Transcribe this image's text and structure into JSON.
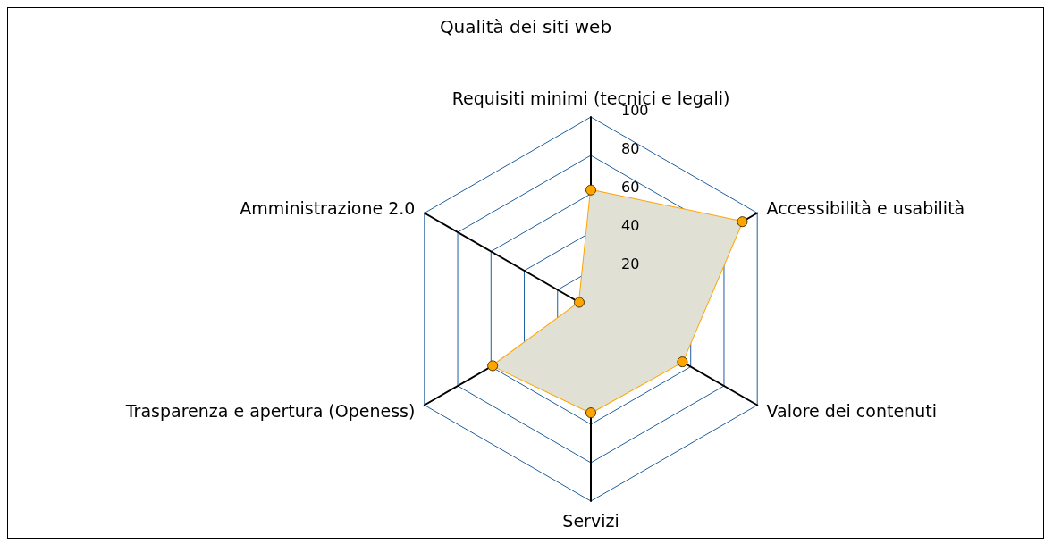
{
  "chart_data": {
    "type": "radar",
    "title": "Qualità dei siti web",
    "categories": [
      "Requisiti minimi (tecnici e legali)",
      "Accessibilità e usabilità",
      "Valore dei contenuti",
      "Servizi",
      "Trasparenza e apertura (Openess)",
      "Amministrazione 2.0"
    ],
    "series": [
      {
        "color": "#ffa500",
        "values": [
          62,
          91,
          55,
          54,
          59,
          7
        ]
      }
    ],
    "ylim": [
      0,
      100
    ],
    "yticks": [
      20,
      40,
      60,
      80,
      100
    ],
    "marker": "circle",
    "grid": true
  }
}
